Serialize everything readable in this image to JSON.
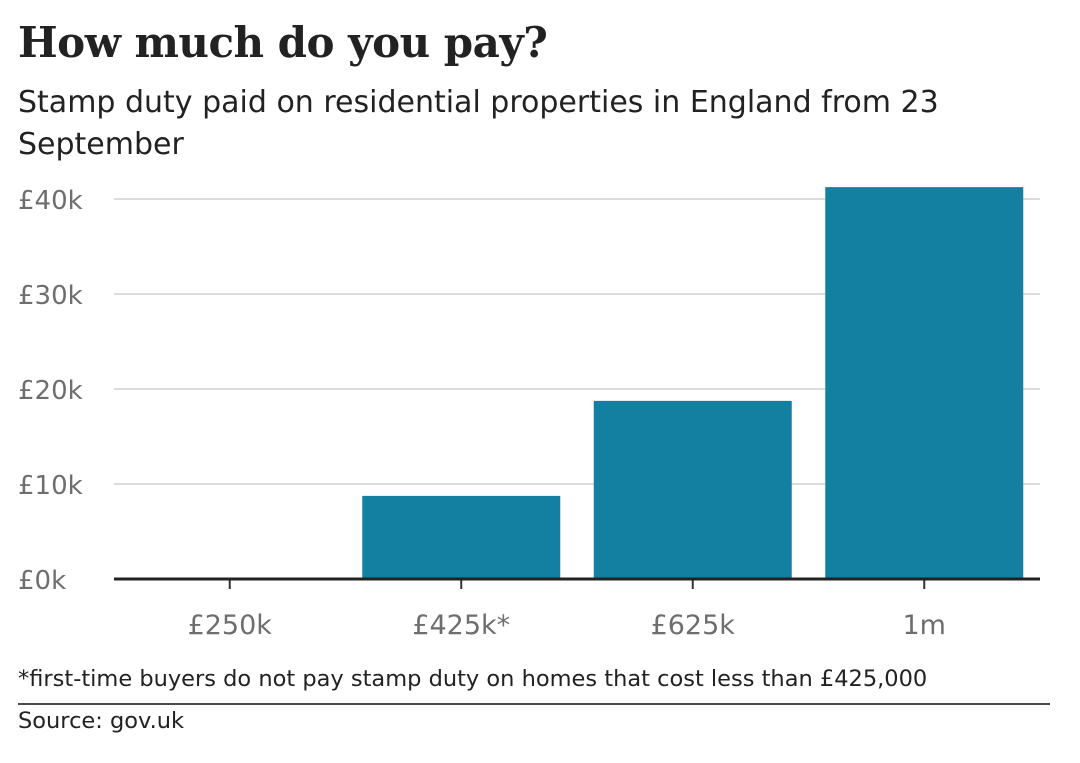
{
  "header": {
    "title": "How much do you pay?",
    "subtitle": "Stamp duty paid on residential properties in England from 23 September"
  },
  "chart_data": {
    "type": "bar",
    "categories": [
      "£250k",
      "£425k*",
      "£625k",
      "1m"
    ],
    "values": [
      0,
      8750,
      18750,
      41250
    ],
    "yticks": [
      0,
      10000,
      20000,
      30000,
      40000
    ],
    "ytick_labels": [
      "£0k",
      "£10k",
      "£20k",
      "£30k",
      "£40k"
    ],
    "ylim": [
      0,
      41250
    ],
    "grid": true,
    "bar_color": "#1380a1"
  },
  "footer": {
    "footnote": "*first-time buyers do not pay stamp duty on homes that cost less than £425,000",
    "source": "Source: gov.uk"
  }
}
